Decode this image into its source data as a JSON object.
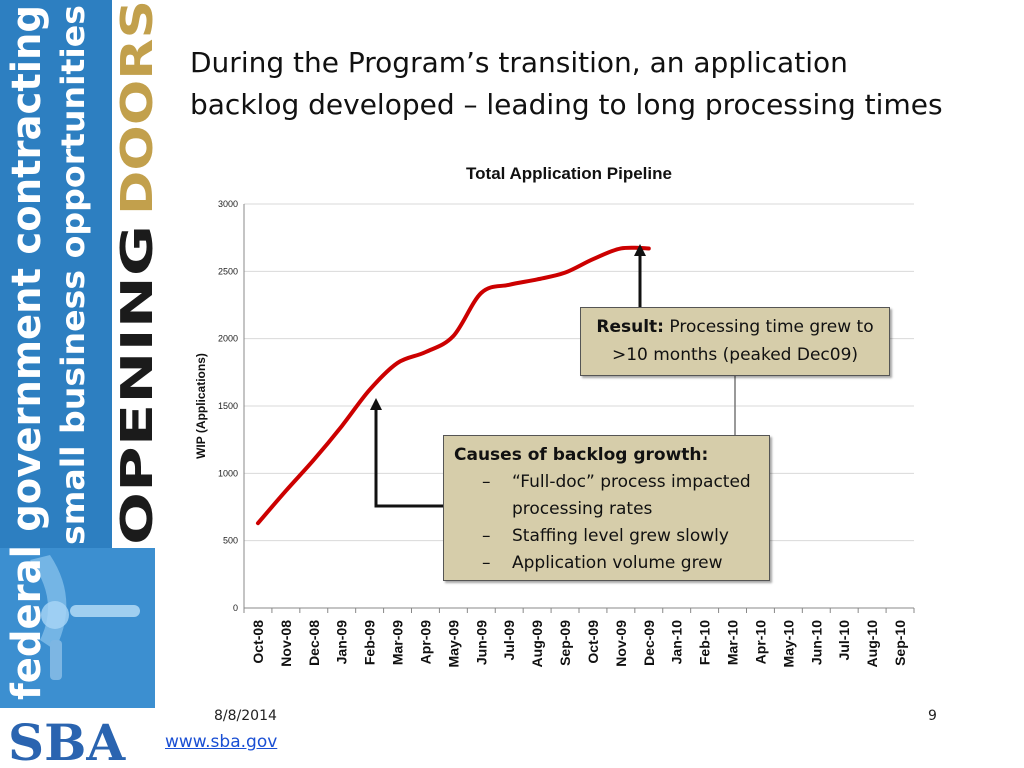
{
  "slide": {
    "title_lines": [
      "During the Program’s transition, an application",
      "backlog developed – leading to long processing times"
    ],
    "footer_date": "8/8/2014",
    "page_number": "9",
    "url": "www.sba.gov"
  },
  "branding": {
    "line1": "federal government contracting",
    "line2": "small business opportunities",
    "opening": "OPENING",
    "doors": "DOORS",
    "logo": "SBA",
    "colors": {
      "band": "#2d7fc1",
      "opening_text": "#1b1b1b",
      "doors_text": "#c2a04c",
      "tagline_text": "#ffffff"
    }
  },
  "result_callout": {
    "label": "Result:",
    "text": "Processing time grew to >10 months (peaked Dec09)"
  },
  "causes_callout": {
    "heading": "Causes of backlog growth:",
    "items": [
      "“Full-doc” process impacted processing rates",
      "Staffing level grew slowly",
      "Application volume grew"
    ]
  },
  "chart_data": {
    "type": "line",
    "title": "Total Application Pipeline",
    "xlabel": "",
    "ylabel": "WIP (Applications)",
    "ylim": [
      0,
      3000
    ],
    "yticks": [
      0,
      500,
      1000,
      1500,
      2000,
      2500,
      3000
    ],
    "grid": true,
    "categories": [
      "Oct-08",
      "Nov-08",
      "Dec-08",
      "Jan-09",
      "Feb-09",
      "Mar-09",
      "Apr-09",
      "May-09",
      "Jun-09",
      "Jul-09",
      "Aug-09",
      "Sep-09",
      "Oct-09",
      "Nov-09",
      "Dec-09",
      "Jan-10",
      "Feb-10",
      "Mar-10",
      "Apr-10",
      "May-10",
      "Jun-10",
      "Jul-10",
      "Aug-10",
      "Sep-10"
    ],
    "series": [
      {
        "color": "#cc0000",
        "values": [
          630,
          870,
          1100,
          1350,
          1620,
          1820,
          1900,
          2020,
          2340,
          2400,
          2440,
          2490,
          2590,
          2670,
          2670,
          null,
          null,
          null,
          null,
          null,
          null,
          null,
          null,
          null
        ]
      }
    ]
  }
}
